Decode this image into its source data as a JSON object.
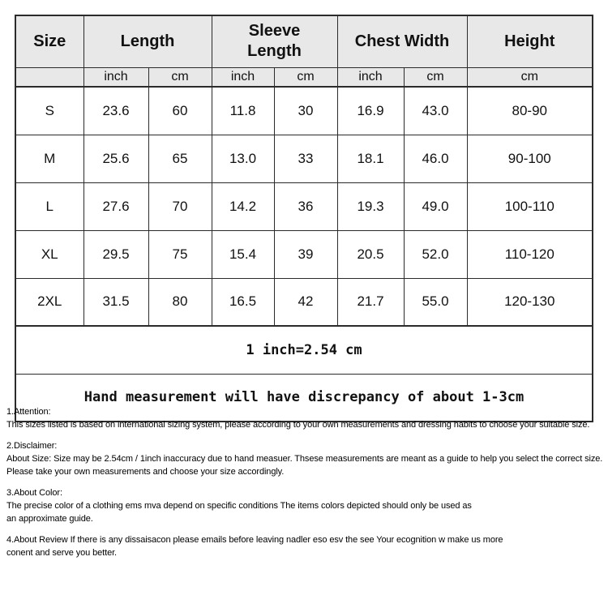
{
  "colors": {
    "header_bg": "#e8e8e8",
    "border": "#2b2b2b",
    "text": "#111111"
  },
  "table": {
    "headers": {
      "size": "Size",
      "length": "Length",
      "sleeve_length": "Sleeve Length",
      "chest_width": "Chest Width",
      "height": "Height"
    },
    "subheaders": [
      "",
      "inch",
      "cm",
      "inch",
      "cm",
      "inch",
      "cm",
      "cm"
    ],
    "rows": [
      [
        "S",
        "23.6",
        "60",
        "11.8",
        "30",
        "16.9",
        "43.0",
        "80-90"
      ],
      [
        "M",
        "25.6",
        "65",
        "13.0",
        "33",
        "18.1",
        "46.0",
        "90-100"
      ],
      [
        "L",
        "27.6",
        "70",
        "14.2",
        "36",
        "19.3",
        "49.0",
        "100-110"
      ],
      [
        "XL",
        "29.5",
        "75",
        "15.4",
        "39",
        "20.5",
        "52.0",
        "110-120"
      ],
      [
        "2XL",
        "31.5",
        "80",
        "16.5",
        "42",
        "21.7",
        "55.0",
        "120-130"
      ]
    ],
    "footer_rows": [
      "1 inch=2.54 cm",
      "Hand measurement will have discrepancy of about 1-3cm"
    ]
  },
  "notes": [
    {
      "heading": "1.Attention:",
      "lines": [
        "This sizes listed is based on international sizing system, please according to your own measurements and dressing habits to choose your suitable size."
      ]
    },
    {
      "heading": "2.Disclaimer:",
      "lines": [
        "About Size: Size may be 2.54cm / 1inch inaccuracy due to hand measuer. Thsese measurements are meant as a guide to help you select the correct size.",
        "Please take your own measurements and choose your size accordingly."
      ]
    },
    {
      "heading": "3.About Color:",
      "lines": [
        "The precise color of a clothing ems mva depend on specific conditions The items colors depicted should only be used as",
        "an approximate guide."
      ]
    },
    {
      "heading": "",
      "lines": [
        "4.About Review If there is any dissaisacon please emails before leaving nadler eso esv the see Your ecognition w make us more",
        "conent and serve you better."
      ]
    }
  ]
}
